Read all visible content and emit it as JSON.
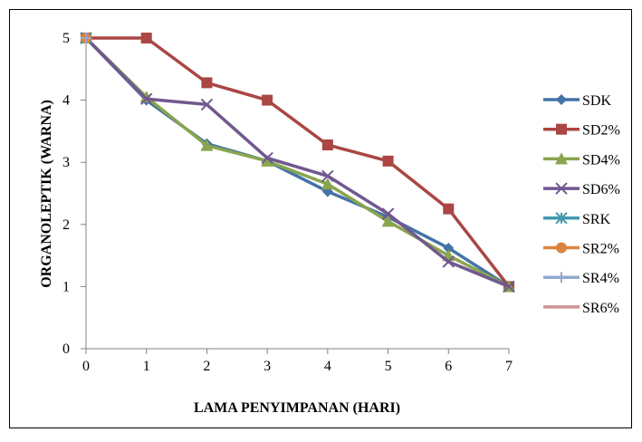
{
  "chart_data": {
    "type": "line",
    "xlabel": "LAMA PENYIMPANAN (HARI)",
    "ylabel": "ORGANOLEPTIK (WARNA)",
    "x": [
      0,
      1,
      2,
      3,
      4,
      5,
      6,
      7
    ],
    "xlim": [
      0,
      7
    ],
    "ylim": [
      0,
      5
    ],
    "yticks": [
      0,
      1,
      2,
      3,
      4,
      5
    ],
    "grid": false,
    "legend_position": "right",
    "series": [
      {
        "name": "SDK",
        "color": "#4572A7",
        "marker": "diamond",
        "values": [
          5,
          4.0,
          3.3,
          3.02,
          2.53,
          2.12,
          1.62,
          1.0
        ]
      },
      {
        "name": "SD2%",
        "color": "#AA4643",
        "marker": "square",
        "values": [
          5,
          5.0,
          4.28,
          4.0,
          3.28,
          3.02,
          2.25,
          1.0
        ]
      },
      {
        "name": "SD4%",
        "color": "#89A54E",
        "marker": "triangle",
        "values": [
          5,
          4.05,
          3.27,
          3.02,
          2.65,
          2.05,
          1.5,
          1.0
        ]
      },
      {
        "name": "SD6%",
        "color": "#71588F",
        "marker": "x",
        "values": [
          5,
          4.02,
          3.93,
          3.07,
          2.78,
          2.17,
          1.4,
          1.0
        ]
      },
      {
        "name": "SRK",
        "color": "#4198AF",
        "marker": "asterisk",
        "values": [
          5,
          null,
          null,
          null,
          null,
          null,
          null,
          null
        ]
      },
      {
        "name": "SR2%",
        "color": "#DB843D",
        "marker": "circle",
        "values": [
          5,
          null,
          null,
          null,
          null,
          null,
          null,
          null
        ]
      },
      {
        "name": "SR4%",
        "color": "#93A9CF",
        "marker": "plus",
        "values": [
          5,
          null,
          null,
          null,
          null,
          null,
          null,
          null
        ]
      },
      {
        "name": "SR6%",
        "color": "#D19392",
        "marker": "none",
        "values": [
          5,
          null,
          null,
          null,
          null,
          null,
          null,
          null
        ]
      }
    ]
  }
}
